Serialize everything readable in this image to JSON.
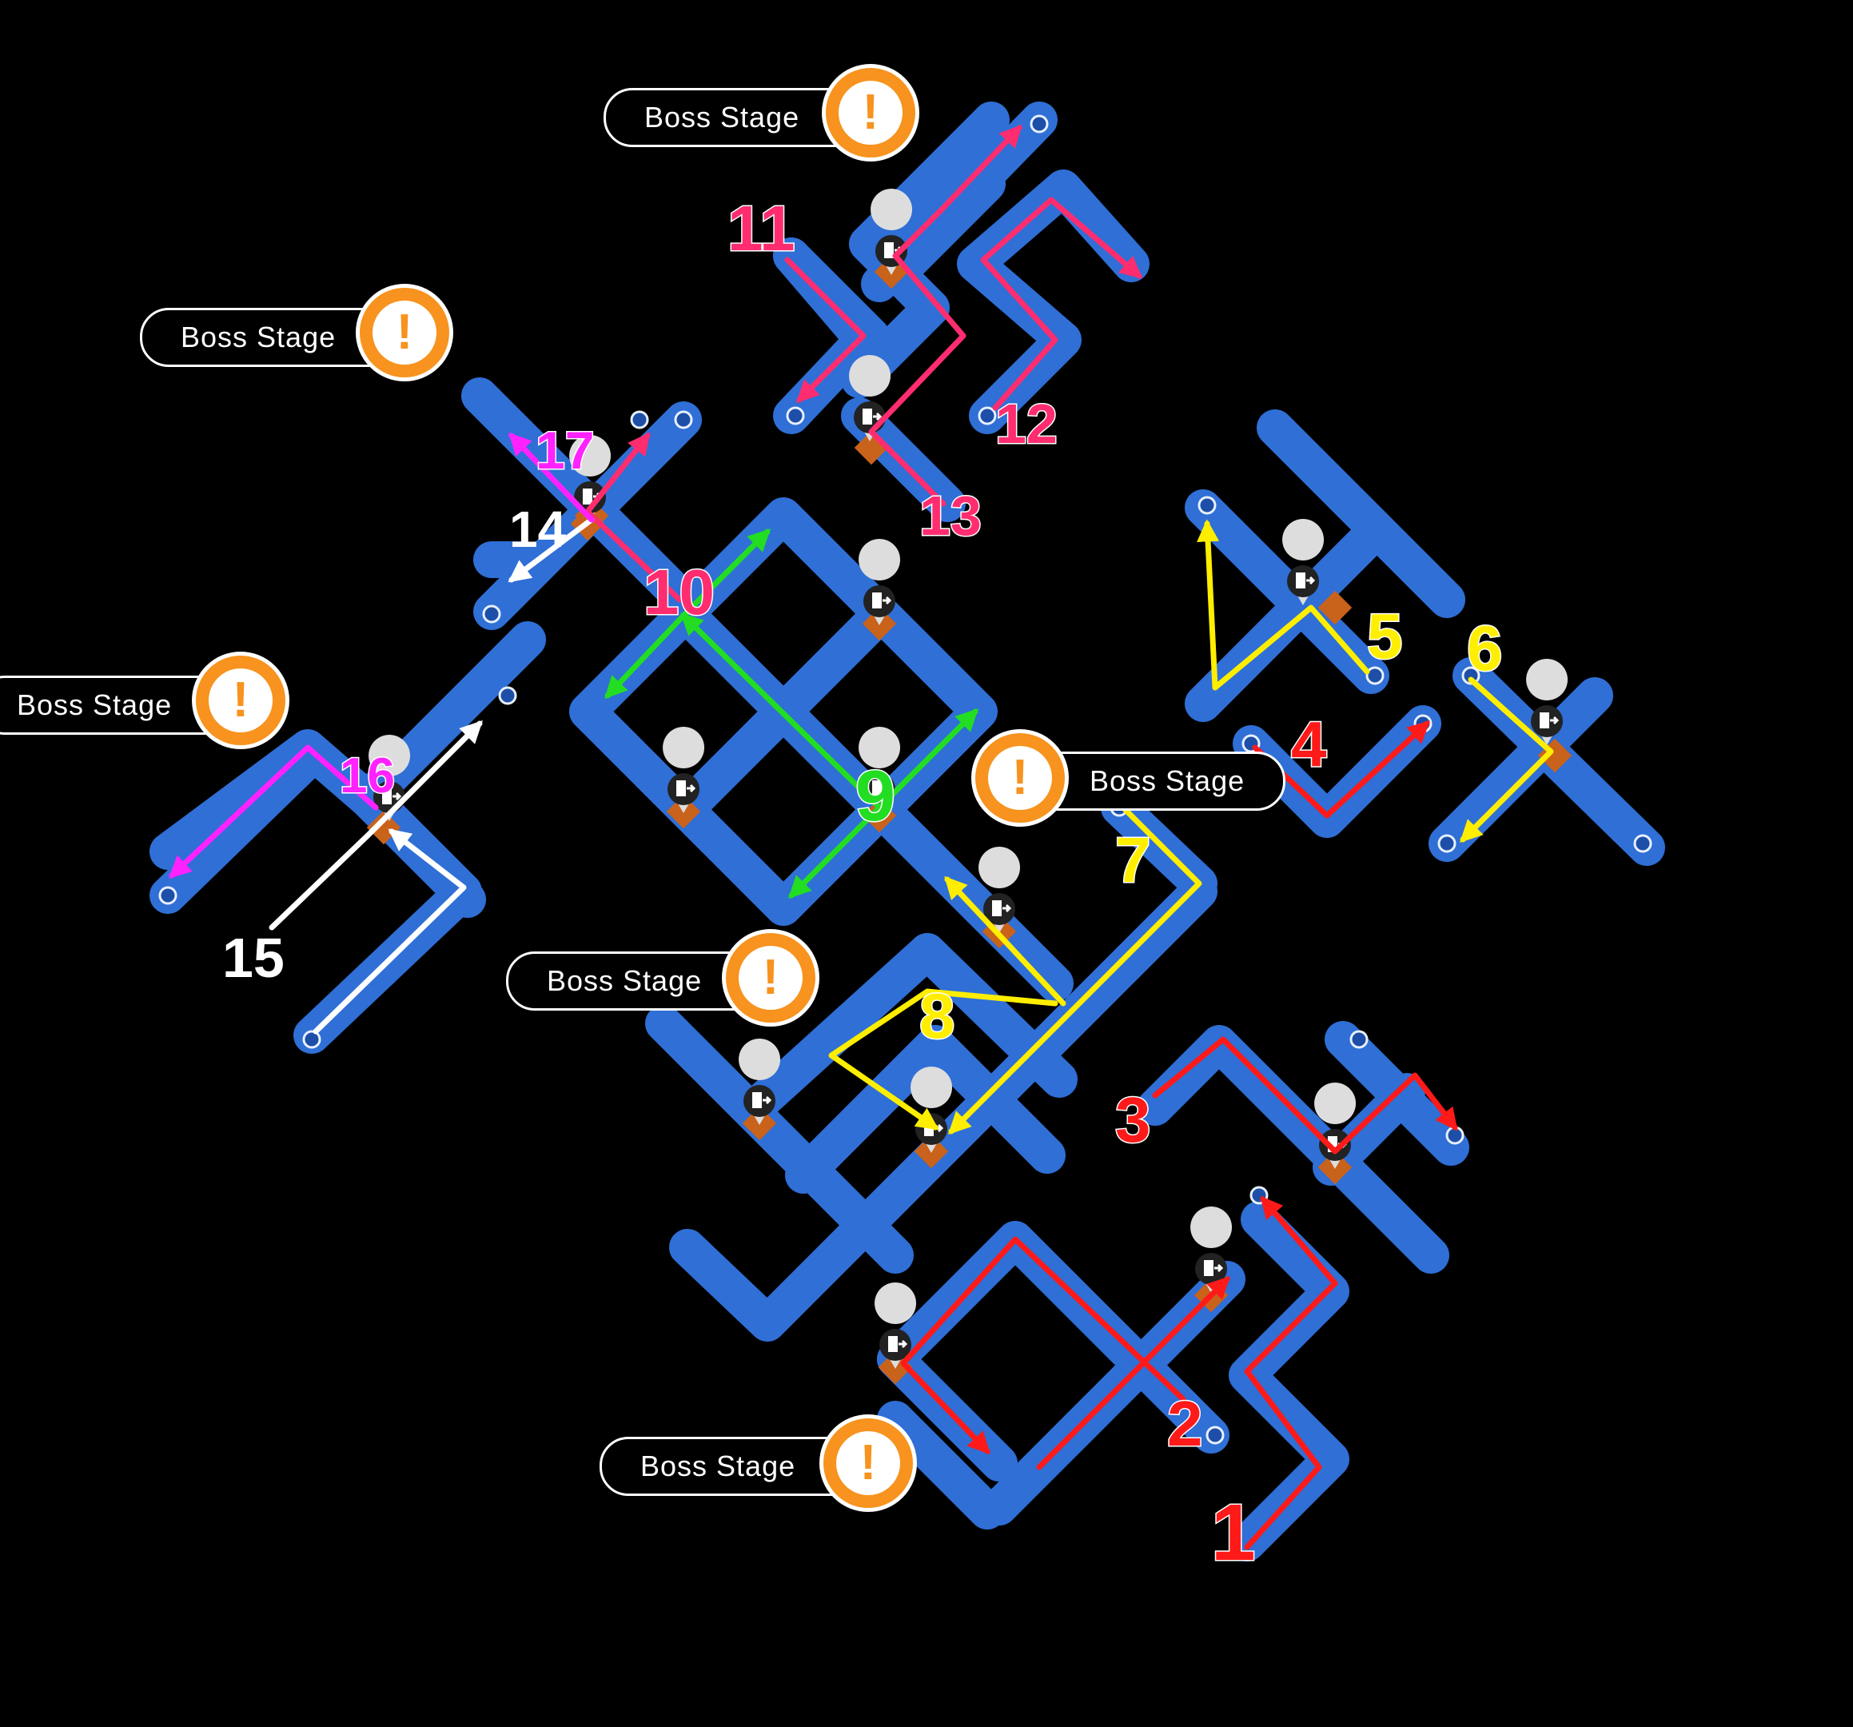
{
  "boss_label_text": "Boss Stage",
  "boss_icon_glyph": "!",
  "colors": {
    "background": "#000000",
    "track": "#2f6fd6",
    "track_dark": "#1d4fa8",
    "junction": "#c9621b",
    "boss_orange": "#f7931e",
    "route_red": "#ff1a1a",
    "route_pink": "#ff2d6f",
    "route_yellow": "#ffee00",
    "route_green": "#22dd22",
    "route_white": "#ffffff",
    "route_magenta": "#ff22ff"
  },
  "icons": [
    "boss-stage-icon",
    "door-exit-icon",
    "heart-icon",
    "skull-icon",
    "potion-icon",
    "chest-icon",
    "circle-node-icon"
  ],
  "steps": [
    {
      "label": "1",
      "color": "red"
    },
    {
      "label": "2",
      "color": "red"
    },
    {
      "label": "3",
      "color": "red"
    },
    {
      "label": "4",
      "color": "red"
    },
    {
      "label": "5",
      "color": "yellow"
    },
    {
      "label": "6",
      "color": "yellow"
    },
    {
      "label": "7",
      "color": "yellow"
    },
    {
      "label": "8",
      "color": "yellow"
    },
    {
      "label": "9",
      "color": "green"
    },
    {
      "label": "10",
      "color": "pink"
    },
    {
      "label": "11",
      "color": "pink"
    },
    {
      "label": "12",
      "color": "pink"
    },
    {
      "label": "13",
      "color": "pink"
    },
    {
      "label": "14",
      "color": "white"
    },
    {
      "label": "15",
      "color": "white"
    },
    {
      "label": "16",
      "color": "magenta"
    },
    {
      "label": "17",
      "color": "magenta"
    }
  ]
}
